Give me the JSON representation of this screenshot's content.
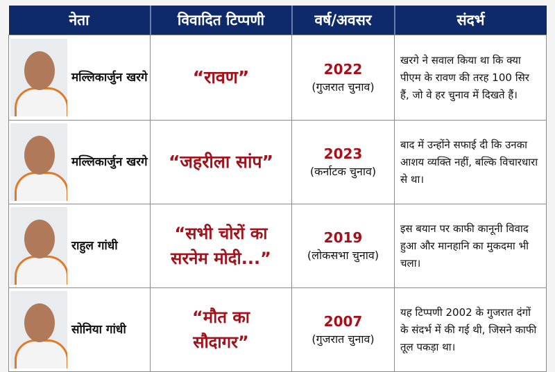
{
  "headers": [
    "नेता",
    "विवादित टिप्पणी",
    "वर्ष/अवसर",
    "संदर्भ"
  ],
  "colors": {
    "header_bg": "#0e2a6b",
    "accent_red": "#a3111b"
  },
  "rows": [
    {
      "leader": "मल्लिकार्जुन खरगे",
      "photo": "mallikarjun-kharge-photo",
      "remark": "“रावण”",
      "year": "2022",
      "occasion": "(गुजरात चुनाव)",
      "context": "खरगे ने सवाल किया था कि क्या पीएम के रावण की तरह 100 सिर हैं, जो वे हर चुनाव में दिखते हैं।"
    },
    {
      "leader": "मल्लिकार्जुन खरगे",
      "photo": "mallikarjun-kharge-photo",
      "remark": "“जहरीला सांप”",
      "year": "2023",
      "occasion": "(कर्नाटक चुनाव)",
      "context": "बाद में उन्होंने सफाई दी कि उनका आशय व्यक्ति नहीं, बल्कि विचारधारा से था।"
    },
    {
      "leader": "राहुल गांधी",
      "photo": "rahul-gandhi-photo",
      "remark": "“सभी चोरों का सरनेम मोदी...”",
      "year": "2019",
      "occasion": "(लोकसभा चुनाव)",
      "context": "इस बयान पर काफी कानूनी विवाद हुआ और मानहानि का मुकदमा भी चला।"
    },
    {
      "leader": "सोनिया गांधी",
      "photo": "sonia-gandhi-photo",
      "remark": "“मौत का सौदागर”",
      "year": "2007",
      "occasion": "(गुजरात चुनाव)",
      "context": "यह टिप्पणी 2002 के गुजरात दंगों के संदर्भ में की गई थी, जिसने काफी तूल पकड़ा था।"
    }
  ]
}
